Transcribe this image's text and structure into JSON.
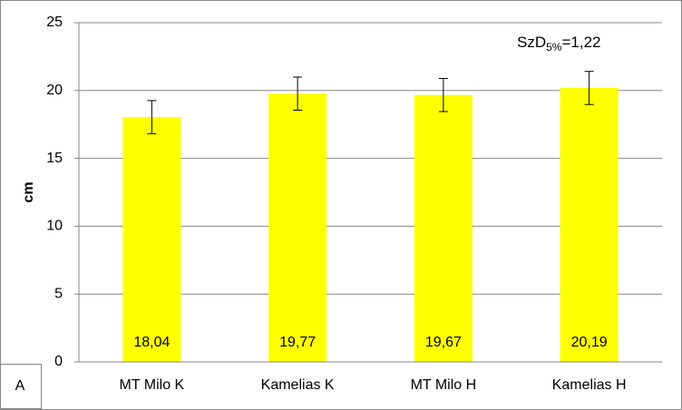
{
  "chart_data": {
    "type": "bar",
    "panel_label": "A",
    "y_label": "cm",
    "annotation": {
      "main": "SzD",
      "sub": "5%",
      "rest": "=1,22"
    },
    "categories": [
      "MT Milo K",
      "Kamelias K",
      "MT Milo H",
      "Kamelias H"
    ],
    "values": [
      18.04,
      19.77,
      19.67,
      20.19
    ],
    "value_labels": [
      "18,04",
      "19,77",
      "19,67",
      "20,19"
    ],
    "errors": [
      1.22,
      1.22,
      1.22,
      1.22
    ],
    "color": "#ffff00",
    "ylim": [
      0,
      25
    ],
    "yticks": [
      0,
      5,
      10,
      15,
      20,
      25
    ],
    "grid": true
  }
}
